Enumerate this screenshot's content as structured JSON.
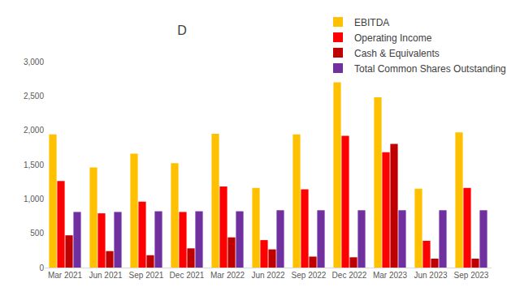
{
  "chart_data": {
    "type": "bar",
    "title": "D",
    "categories": [
      "Mar 2021",
      "Jun 2021",
      "Sep 2021",
      "Dec 2021",
      "Mar 2022",
      "Jun 2022",
      "Sep 2022",
      "Dec 2022",
      "Mar 2023",
      "Jun 2023",
      "Sep 2023"
    ],
    "series": [
      {
        "name": "EBITDA",
        "color": "#FFC000",
        "values": [
          1940,
          1460,
          1660,
          1520,
          1950,
          1160,
          1940,
          2700,
          2480,
          1150,
          1970
        ]
      },
      {
        "name": "Operating Income",
        "color": "#FF0000",
        "values": [
          1260,
          790,
          960,
          810,
          1180,
          400,
          1140,
          1920,
          1680,
          390,
          1160
        ]
      },
      {
        "name": "Cash & Equivalents",
        "color": "#C00000",
        "values": [
          470,
          240,
          180,
          280,
          440,
          265,
          160,
          150,
          1800,
          130,
          130
        ]
      },
      {
        "name": "Total Common Shares Outstanding",
        "color": "#7030A0",
        "values": [
          810,
          810,
          820,
          820,
          820,
          835,
          835,
          835,
          835,
          835,
          835
        ]
      }
    ],
    "ylim": [
      0,
      3000
    ],
    "yticks": [
      0,
      500,
      {
        "value": 1000,
        "label": "1,000"
      },
      {
        "value": 1500,
        "label": "1,500"
      },
      {
        "value": 2000,
        "label": "2,000"
      },
      {
        "value": 2500,
        "label": "2,500"
      },
      {
        "value": 3000,
        "label": "3,000"
      }
    ],
    "grid": false,
    "legend": "top right"
  }
}
